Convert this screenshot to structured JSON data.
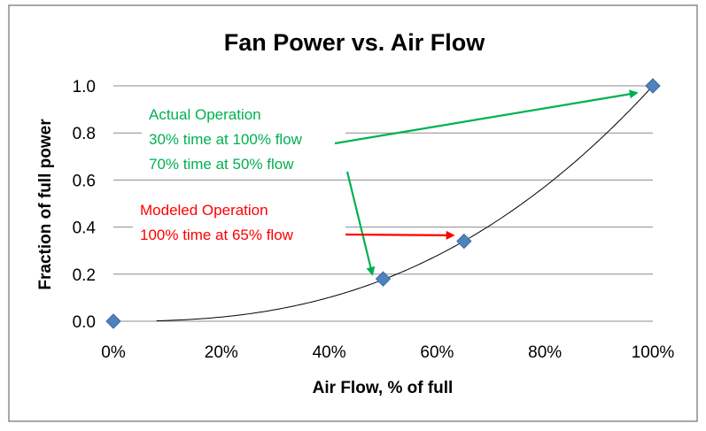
{
  "chart_data": {
    "type": "scatter",
    "title": "Fan Power vs. Air Flow",
    "xlabel": "Air Flow, % of full",
    "ylabel": "Fraction of full power",
    "xlim": [
      0,
      100
    ],
    "ylim": [
      0,
      1.0
    ],
    "x_ticks": [
      0,
      20,
      40,
      60,
      80,
      100
    ],
    "x_tick_labels": [
      "0%",
      "20%",
      "40%",
      "60%",
      "80%",
      "100%"
    ],
    "y_ticks": [
      0,
      0.2,
      0.4,
      0.6,
      0.8,
      1.0
    ],
    "y_tick_labels": [
      "0.0",
      "0.2",
      "0.4",
      "0.6",
      "0.8",
      "1.0"
    ],
    "grid": "horizontal",
    "points": [
      {
        "x": 0,
        "y": 0.0
      },
      {
        "x": 50,
        "y": 0.18
      },
      {
        "x": 65,
        "y": 0.34
      },
      {
        "x": 100,
        "y": 1.0
      }
    ],
    "trendline": {
      "type": "power",
      "exponent": 2.5,
      "x_start": 8,
      "x_end": 100
    },
    "marker_color": "#4f81bd",
    "annotations": {
      "actual": {
        "lines": [
          "Actual Operation",
          "30% time at 100% flow",
          "70% time at 50% flow"
        ],
        "color": "#00b050",
        "arrows_to": [
          {
            "x": 97,
            "y": 0.97
          },
          {
            "x": 48,
            "y": 0.2
          }
        ]
      },
      "modeled": {
        "lines": [
          "Modeled Operation",
          "100% time at 65% flow"
        ],
        "color": "#ff0000",
        "arrows_to": [
          {
            "x": 63,
            "y": 0.365
          }
        ]
      }
    }
  }
}
